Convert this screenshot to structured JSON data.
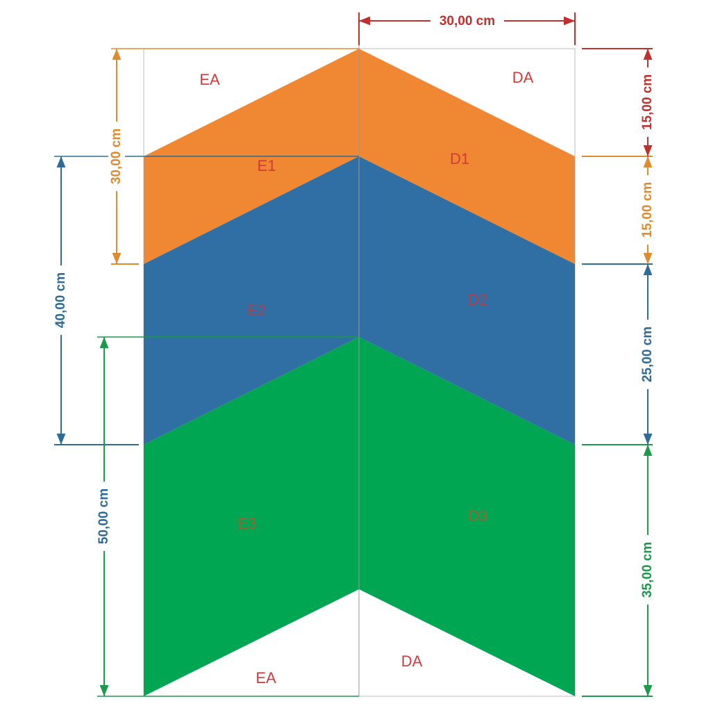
{
  "regions": {
    "top_left": "EA",
    "top_right": "DA",
    "e1": "E1",
    "d1": "D1",
    "e2": "E2",
    "d2": "D2",
    "e3": "E3",
    "d3": "D3",
    "bottom_left": "EA",
    "bottom_right": "DA"
  },
  "dimensions": {
    "top": "30,00 cm",
    "right": [
      "15,00 cm",
      "15,00 cm",
      "25,00 cm",
      "35,00 cm"
    ],
    "left": [
      "30,00 cm",
      "40,00 cm",
      "50,00 cm"
    ]
  }
}
